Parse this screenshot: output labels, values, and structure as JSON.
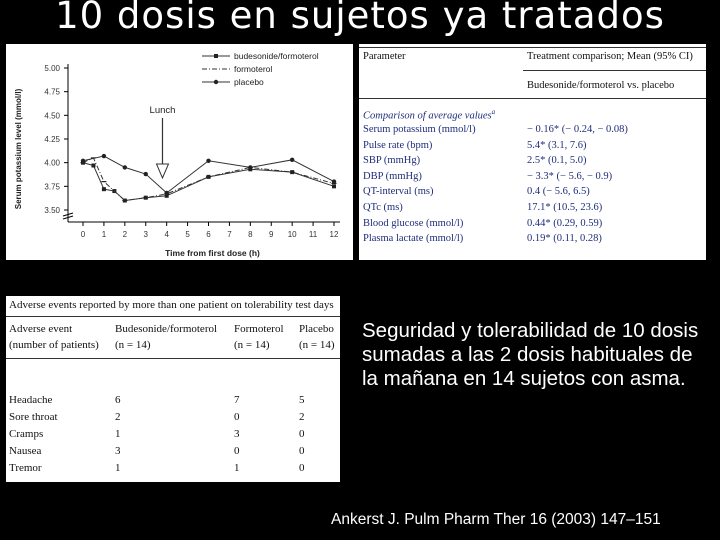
{
  "slide_title": "10 dosis en sujetos ya tratados",
  "chart_data": {
    "type": "line",
    "title": "",
    "xlabel": "Time from first dose (h)",
    "ylabel": "Serum potassium level (mmol/l)",
    "ylim": [
      3.5,
      5.0
    ],
    "yticks": [
      "5.00",
      "4.75",
      "4.50",
      "4.25",
      "4.00",
      "3.75",
      "3.50"
    ],
    "xticks": [
      "0",
      "1",
      "2",
      "3",
      "4",
      "5",
      "6",
      "7",
      "8",
      "9",
      "10",
      "11",
      "12"
    ],
    "annotation": "Lunch",
    "legend_position": "top-right",
    "series": [
      {
        "name": "budesonide/formoterol",
        "x": [
          0,
          0.5,
          1,
          1.5,
          2,
          3,
          4,
          6,
          8,
          10,
          12
        ],
        "values": [
          4.0,
          3.97,
          3.72,
          3.7,
          3.6,
          3.63,
          3.65,
          3.85,
          3.93,
          3.9,
          3.75
        ]
      },
      {
        "name": "formoterol",
        "x": [
          0,
          0.5,
          1,
          2,
          3,
          4,
          6,
          8,
          10,
          12
        ],
        "values": [
          4.0,
          4.05,
          3.8,
          3.6,
          3.63,
          3.67,
          3.85,
          3.95,
          3.9,
          3.78
        ]
      },
      {
        "name": "placebo",
        "x": [
          0,
          1,
          2,
          3,
          4,
          6,
          8,
          10,
          12
        ],
        "values": [
          4.02,
          4.07,
          3.95,
          3.88,
          3.68,
          4.02,
          3.95,
          4.03,
          3.8
        ]
      }
    ]
  },
  "param_table": {
    "col1_header": "Parameter",
    "col2_header": "Treatment comparison; Mean (95% CI)",
    "col2_subheader": "Budesonide/formoterol vs. placebo",
    "section_label": "Comparison of average values",
    "section_sup": "a",
    "rows": [
      {
        "param": "Serum potassium (mmol/l)",
        "value": "− 0.16* (− 0.24, − 0.08)"
      },
      {
        "param": "Pulse rate (bpm)",
        "value": "5.4* (3.1, 7.6)"
      },
      {
        "param": "SBP (mmHg)",
        "value": "2.5* (0.1, 5.0)"
      },
      {
        "param": "DBP (mmHg)",
        "value": "− 3.3* (− 5.6, − 0.9)"
      },
      {
        "param": "QT-interval (ms)",
        "value": "0.4 (− 5.6, 6.5)"
      },
      {
        "param": "QTc (ms)",
        "value": "17.1* (10.5, 23.6)"
      },
      {
        "param": "Blood glucose (mmol/l)",
        "value": "0.44* (0.29, 0.59)"
      },
      {
        "param": "Plasma lactate (mmol/l)",
        "value": "0.19* (0.11, 0.28)"
      }
    ]
  },
  "ae_table": {
    "caption": "Adverse events reported by more than one patient on tolerability test days",
    "headers": [
      {
        "line1": "Adverse event",
        "line2": "(number of patients)"
      },
      {
        "line1": "Budesonide/formoterol",
        "line2": "(n = 14)"
      },
      {
        "line1": "Formoterol",
        "line2": "(n = 14)"
      },
      {
        "line1": "Placebo",
        "line2": "(n = 14)"
      }
    ],
    "rows": [
      [
        "Headache",
        "6",
        "7",
        "5"
      ],
      [
        "Sore throat",
        "2",
        "0",
        "2"
      ],
      [
        "Cramps",
        "1",
        "3",
        "0"
      ],
      [
        "Nausea",
        "3",
        "0",
        "0"
      ],
      [
        "Tremor",
        "1",
        "1",
        "0"
      ]
    ]
  },
  "description": "Seguridad y tolerabilidad de 10 dosis sumadas a las 2 dosis habituales de la mañana en 14 sujetos con asma.",
  "citation": "Ankerst J. Pulm Pharm Ther 16 (2003) 147–151"
}
